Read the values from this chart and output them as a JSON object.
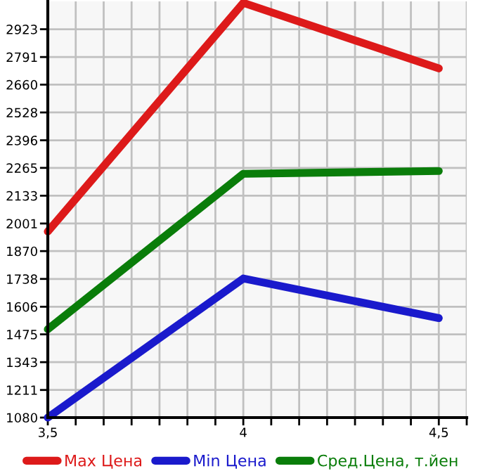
{
  "chart_data": {
    "type": "line",
    "x": [
      3.5,
      4,
      4.5
    ],
    "series": [
      {
        "name": "Max Цена",
        "color": "#dd1a1a",
        "values": [
          1963,
          3048,
          2737
        ]
      },
      {
        "name": "Min Цена",
        "color": "#1a1acc",
        "values": [
          1080,
          1740,
          1552
        ]
      },
      {
        "name": "Сред.Цена, т.йен",
        "color": "#0a7d0a",
        "values": [
          1499,
          2237,
          2250
        ]
      }
    ],
    "xlim": [
      3.5,
      4.5714
    ],
    "xticks": [
      {
        "value": 3.5,
        "label": "3,5"
      },
      {
        "value": 3.5714,
        "label": null
      },
      {
        "value": 3.6429,
        "label": null
      },
      {
        "value": 3.7143,
        "label": null
      },
      {
        "value": 3.7857,
        "label": null
      },
      {
        "value": 3.8571,
        "label": null
      },
      {
        "value": 3.9286,
        "label": null
      },
      {
        "value": 4,
        "label": "4"
      },
      {
        "value": 4.0714,
        "label": null
      },
      {
        "value": 4.1429,
        "label": null
      },
      {
        "value": 4.2143,
        "label": null
      },
      {
        "value": 4.2857,
        "label": null
      },
      {
        "value": 4.3571,
        "label": null
      },
      {
        "value": 4.4286,
        "label": null
      },
      {
        "value": 4.5,
        "label": "4,5"
      },
      {
        "value": 4.5714,
        "label": null
      }
    ],
    "ylim": [
      1080,
      3055
    ],
    "yticks": [
      1080,
      1211,
      1343,
      1475,
      1606,
      1738,
      1870,
      2001,
      2133,
      2265,
      2396,
      2528,
      2660,
      2791,
      2923
    ],
    "grid": true,
    "legend": "bottom",
    "marker": "none",
    "line_style": "solid"
  }
}
